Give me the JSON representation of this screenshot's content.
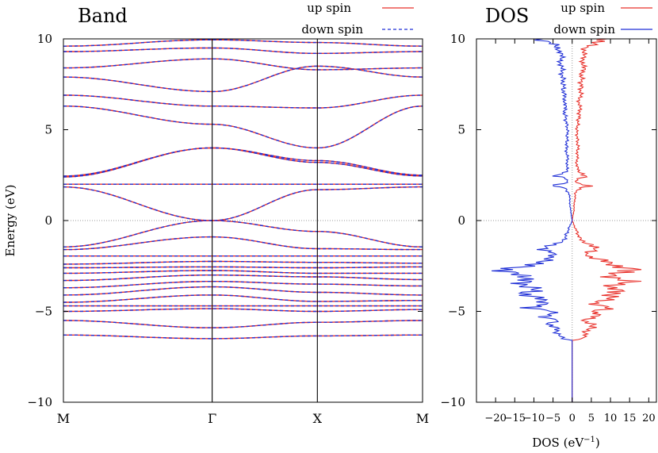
{
  "colors": {
    "up": "#e8302a",
    "down": "#1f2fd6",
    "frame": "#000000",
    "zero_line": "#999999"
  },
  "chart_data": [
    {
      "type": "line",
      "title": "Band",
      "ylabel": "Energy (eV)",
      "ylim": [
        -10,
        10
      ],
      "yticks": [
        -10,
        -5,
        0,
        5,
        10
      ],
      "ytick_labels": [
        "−10",
        "−5",
        "0",
        "5",
        "10"
      ],
      "kpoints": [
        {
          "label": "M",
          "pos": 0.0
        },
        {
          "label": "Γ",
          "pos": 1.0
        },
        {
          "label": "X",
          "pos": 1.7071
        },
        {
          "label": "M",
          "pos": 2.4142
        }
      ],
      "legend": [
        {
          "label": "up spin",
          "style": "solid"
        },
        {
          "label": "down spin",
          "style": "dashed"
        }
      ],
      "legend_position": "top-right",
      "series": [
        {
          "type": "line",
          "values": [
            -6.3,
            -6.5,
            -6.35,
            -6.3
          ]
        },
        {
          "type": "line",
          "values": [
            -5.5,
            -5.9,
            -5.6,
            -5.5
          ]
        },
        {
          "type": "line",
          "values": [
            -5.0,
            -4.85,
            -5.0,
            -4.9
          ]
        },
        {
          "type": "line",
          "values": [
            -4.7,
            -4.7,
            -4.7,
            -4.7
          ]
        },
        {
          "type": "line",
          "values": [
            -4.5,
            -4.1,
            -4.45,
            -4.4
          ]
        },
        {
          "type": "line",
          "values": [
            -4.1,
            -3.65,
            -3.95,
            -4.1
          ]
        },
        {
          "type": "line",
          "values": [
            -3.7,
            -3.35,
            -3.5,
            -3.6
          ]
        },
        {
          "type": "line",
          "values": [
            -3.3,
            -3.0,
            -3.1,
            -3.25
          ]
        },
        {
          "type": "line",
          "values": [
            -2.9,
            -2.75,
            -2.9,
            -2.9
          ]
        },
        {
          "type": "line",
          "values": [
            -2.6,
            -2.55,
            -2.6,
            -2.55
          ]
        },
        {
          "type": "line",
          "values": [
            -2.4,
            -2.25,
            -2.3,
            -2.35
          ]
        },
        {
          "type": "line",
          "values": [
            -1.95,
            -1.95,
            -1.95,
            -1.95
          ]
        },
        {
          "type": "line",
          "values": [
            -1.6,
            -0.9,
            -1.55,
            -1.6
          ]
        },
        {
          "type": "line",
          "values": [
            -1.45,
            0.0,
            -0.6,
            -1.45
          ]
        },
        {
          "type": "line",
          "values": [
            1.85,
            0.0,
            1.7,
            1.85
          ]
        },
        {
          "type": "line",
          "values": [
            2.0,
            2.0,
            2.0,
            2.0
          ]
        },
        {
          "type": "line",
          "values": [
            2.4,
            4.0,
            3.2,
            2.45
          ]
        },
        {
          "type": "line",
          "values": [
            2.45,
            4.0,
            3.3,
            2.5
          ]
        },
        {
          "type": "line",
          "values": [
            6.3,
            5.3,
            4.0,
            6.3
          ]
        },
        {
          "type": "line",
          "values": [
            6.9,
            6.3,
            6.2,
            6.9
          ]
        },
        {
          "type": "line",
          "values": [
            7.9,
            7.1,
            8.5,
            7.9
          ]
        },
        {
          "type": "line",
          "values": [
            8.4,
            8.9,
            8.3,
            8.4
          ]
        },
        {
          "type": "line",
          "values": [
            9.3,
            9.5,
            9.2,
            9.3
          ]
        },
        {
          "type": "line",
          "values": [
            9.6,
            9.95,
            9.8,
            9.6
          ]
        }
      ]
    },
    {
      "type": "line",
      "title": "DOS",
      "xlabel": "DOS (eV−1)",
      "xlabel_main": "DOS (eV",
      "xlabel_sup": "−1",
      "xlabel_tail": ")",
      "xlim": [
        -25,
        22
      ],
      "ylim": [
        -10,
        10
      ],
      "xticks": [
        -20,
        -15,
        -10,
        -5,
        0,
        5,
        10,
        15,
        20
      ],
      "xtick_labels": [
        "−20",
        "−15",
        "−10",
        "−5",
        "0",
        "5",
        "10",
        "15",
        "20"
      ],
      "yticks": [
        -10,
        -5,
        0,
        5,
        10
      ],
      "ytick_labels": [
        "−10",
        "−5",
        "0",
        "5",
        "10"
      ],
      "legend": [
        {
          "label": "up spin",
          "style": "solid"
        },
        {
          "label": "down spin",
          "style": "solid"
        }
      ],
      "legend_position": "top-right",
      "series": [
        {
          "type": "line",
          "energy": [
            -10.0,
            -6.6,
            -6.5,
            -6.3,
            -6.0,
            -5.7,
            -5.5,
            -5.3,
            -5.0,
            -4.8,
            -4.6,
            -4.3,
            -4.0,
            -3.7,
            -3.4,
            -3.1,
            -2.9,
            -2.7,
            -2.5,
            -2.3,
            -2.0,
            -1.8,
            -1.6,
            -1.4,
            -1.2,
            -1.0,
            -0.6,
            -0.3,
            0.0,
            0.5,
            1.0,
            1.5,
            1.8,
            1.9,
            2.1,
            2.3,
            2.45,
            2.7,
            3.2,
            4.0,
            5.0,
            6.0,
            6.5,
            7.0,
            8.0,
            8.5,
            9.0,
            9.5,
            9.8,
            10.0
          ],
          "dos": [
            0.0,
            0.0,
            2.5,
            3.5,
            4.0,
            6.0,
            3.0,
            7.0,
            5.0,
            11.0,
            6.0,
            9.0,
            12.0,
            10.0,
            14.0,
            11.0,
            13.0,
            18.0,
            11.0,
            9.0,
            5.0,
            4.0,
            7.0,
            6.0,
            3.0,
            2.0,
            1.2,
            0.6,
            0.0,
            0.4,
            0.6,
            0.8,
            2.0,
            5.0,
            1.0,
            1.5,
            4.0,
            1.5,
            1.2,
            1.5,
            1.2,
            2.0,
            1.8,
            2.2,
            2.5,
            3.0,
            2.8,
            3.5,
            6.0,
            9.0
          ]
        },
        {
          "type": "line",
          "energy": [
            -10.0,
            -6.6,
            -6.5,
            -6.3,
            -6.0,
            -5.7,
            -5.5,
            -5.3,
            -5.0,
            -4.8,
            -4.6,
            -4.3,
            -4.0,
            -3.7,
            -3.4,
            -3.1,
            -2.9,
            -2.7,
            -2.5,
            -2.3,
            -2.0,
            -1.8,
            -1.6,
            -1.4,
            -1.2,
            -1.0,
            -0.6,
            -0.3,
            0.0,
            0.5,
            1.0,
            1.5,
            1.8,
            1.9,
            2.1,
            2.3,
            2.45,
            2.7,
            3.2,
            4.0,
            5.0,
            6.0,
            6.5,
            7.0,
            8.0,
            8.5,
            9.0,
            9.5,
            9.8,
            10.0
          ],
          "dos": [
            0.0,
            0.0,
            -2.5,
            -3.5,
            -4.0,
            -6.0,
            -3.0,
            -7.0,
            -5.0,
            -11.0,
            -6.0,
            -9.0,
            -12.0,
            -10.0,
            -14.0,
            -11.0,
            -13.0,
            -18.0,
            -11.0,
            -9.0,
            -5.0,
            -4.0,
            -7.0,
            -6.0,
            -3.0,
            -2.0,
            -1.2,
            -0.6,
            0.0,
            -0.4,
            -0.6,
            -0.8,
            -2.0,
            -5.0,
            -1.0,
            -1.5,
            -4.0,
            -1.5,
            -1.2,
            -1.5,
            -1.2,
            -2.0,
            -1.8,
            -2.2,
            -2.5,
            -3.0,
            -2.8,
            -3.5,
            -6.0,
            -9.0
          ]
        }
      ]
    }
  ]
}
